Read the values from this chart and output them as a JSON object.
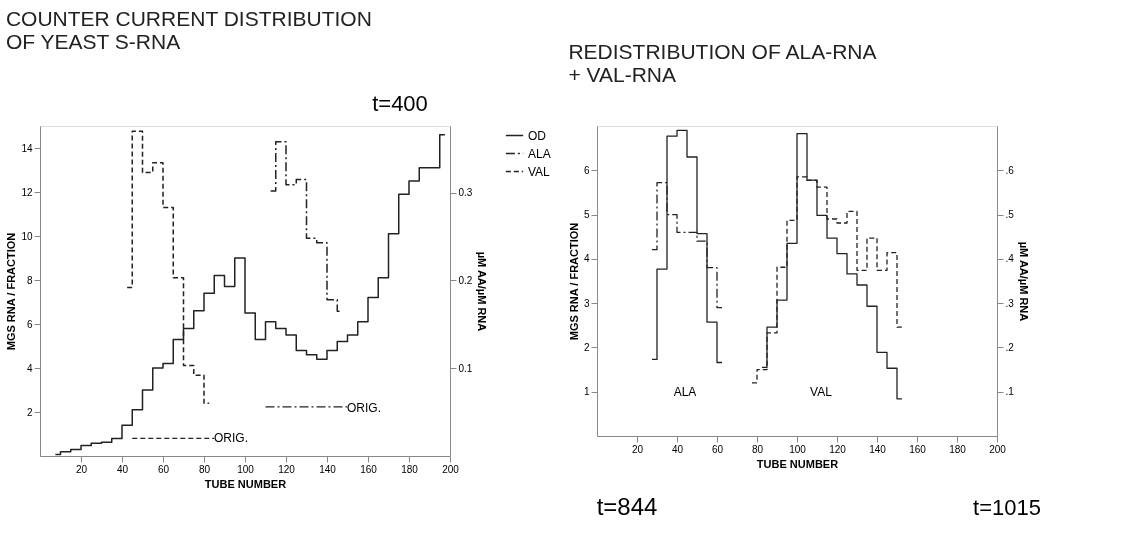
{
  "chart_data": [
    {
      "type": "step",
      "title": "COUNTER CURRENT DISTRIBUTION\nOF YEAST S-RNA",
      "xlabel": "TUBE NUMBER",
      "ylabel": "MGS RNA / FRACTION",
      "y2label": "µM AA/µM RNA",
      "xlim": [
        0,
        200
      ],
      "xticks": [
        20,
        40,
        60,
        80,
        100,
        120,
        140,
        160,
        180,
        200
      ],
      "ylim": [
        0,
        15
      ],
      "yticks": [
        2,
        4,
        6,
        8,
        10,
        12,
        14
      ],
      "y2lim": [
        0,
        0.376
      ],
      "y2ticks": [
        0.1,
        0.2,
        0.3
      ],
      "legend": "top right",
      "series": [
        {
          "name": "OD",
          "color": "#222222",
          "line_style": "solid",
          "x": [
            7.5,
            12.5,
            17.5,
            22.5,
            27.5,
            32.5,
            37.5,
            42.5,
            47.5,
            52.5,
            57.5,
            62.5,
            67.5,
            72.5,
            77.5,
            82.5,
            87.5,
            92.5,
            97.5,
            102.5,
            107.5,
            112.5,
            117.5,
            122.5,
            127.5,
            132.5,
            137.5,
            142.5,
            147.5,
            152.5,
            157.5,
            162.5,
            167.5,
            172.5,
            177.5,
            182.5,
            187.5,
            192.5,
            197.5
          ],
          "values": [
            0.07,
            0.19,
            0.29,
            0.48,
            0.58,
            0.62,
            0.8,
            1.4,
            2.1,
            3.0,
            4.0,
            4.2,
            5.3,
            5.8,
            6.6,
            7.4,
            8.2,
            7.7,
            9.0,
            6.5,
            5.3,
            6.1,
            5.8,
            5.5,
            4.8,
            4.6,
            4.4,
            4.8,
            5.2,
            5.5,
            6.1,
            7.2,
            8.1,
            10.1,
            11.9,
            12.5,
            13.1,
            13.1,
            14.6
          ]
        },
        {
          "name": "ALA",
          "color": "#222222",
          "line_style": "dashdot",
          "axis": "y2",
          "x": [
            112.5,
            117.5,
            122.5,
            127.5,
            132.5,
            137.5,
            142.5,
            147.5
          ],
          "values": [
            0.302,
            0.358,
            0.309,
            0.315,
            0.248,
            0.243,
            0.178,
            0.165
          ]
        },
        {
          "name": "VAL",
          "color": "#222222",
          "line_style": "dashed",
          "axis": "y2",
          "x": [
            42.5,
            47.5,
            52.5,
            57.5,
            62.5,
            67.5,
            72.5,
            77.5,
            82.5
          ],
          "values": [
            0.192,
            0.37,
            0.323,
            0.334,
            0.283,
            0.203,
            0.103,
            0.092,
            0.06
          ]
        },
        {
          "type": "line",
          "color": "#222222",
          "line_style": "dashed",
          "axis": "y2",
          "x": [
            45,
            85
          ],
          "values": [
            0.02,
            0.02
          ]
        },
        {
          "type": "line",
          "color": "#222222",
          "line_style": "dashdot",
          "axis": "y2",
          "x": [
            110,
            150
          ],
          "values": [
            0.056,
            0.056
          ]
        }
      ],
      "annotations": [
        "t=400",
        "ORIG.",
        "ORIG."
      ]
    },
    {
      "type": "step",
      "title": "REDISTRIBUTION OF ALA-RNA\n+ VAL-RNA",
      "xlabel": "TUBE NUMBER",
      "ylabel": "MGS RNA / FRACTION",
      "y2label": "µM AA/µM RNA",
      "xlim": [
        0,
        200
      ],
      "xticks": [
        20,
        40,
        60,
        80,
        100,
        120,
        140,
        160,
        180,
        200
      ],
      "ylim": [
        0,
        7
      ],
      "yticks": [
        1,
        2,
        3,
        4,
        5,
        6
      ],
      "y2lim": [
        0,
        0.7
      ],
      "y2ticks": [
        {
          "value": 0.1,
          "label": ".1"
        },
        {
          "value": 0.2,
          "label": ".2"
        },
        {
          "value": 0.3,
          "label": ".3"
        },
        {
          "value": 0.4,
          "label": ".4"
        },
        {
          "value": 0.5,
          "label": ".5"
        },
        {
          "value": 0.6,
          "label": ".6"
        }
      ],
      "series": [
        {
          "color": "#222222",
          "line_style": "solid",
          "x": [
            27.5,
            32.5,
            37.5,
            42.5,
            47.5,
            52.5,
            57.5,
            62.5,
            72.5,
            82.5,
            87.5,
            92.5,
            97.5,
            102.5,
            107.5,
            112.5,
            117.5,
            122.5,
            127.5,
            132.5,
            137.5,
            142.5,
            147.5,
            152.5
          ],
          "values": [
            1.73,
            3.77,
            6.77,
            6.9,
            6.3,
            4.57,
            2.57,
            1.66,
            null,
            1.55,
            2.46,
            3.07,
            4.35,
            6.83,
            5.78,
            4.98,
            4.47,
            4.12,
            3.66,
            3.41,
            2.93,
            1.89,
            1.53,
            0.84
          ]
        },
        {
          "color": "#222222",
          "line_style": "dashdot",
          "axis": "y2",
          "x": [
            27.5,
            32.5,
            37.5,
            42.5,
            47.5,
            52.5,
            57.5,
            62.5
          ],
          "values": [
            0.421,
            0.572,
            0.5,
            0.46,
            0.46,
            0.44,
            0.38,
            0.29
          ]
        },
        {
          "color": "#222222",
          "line_style": "dashed",
          "axis": "y2",
          "x": [
            77.5,
            82.5,
            87.5,
            92.5,
            97.5,
            102.5,
            107.5,
            112.5,
            117.5,
            122.5,
            127.5,
            132.5,
            137.5,
            142.5,
            147.5,
            152.5
          ],
          "values": [
            0.12,
            0.15,
            0.233,
            0.381,
            0.487,
            0.585,
            0.577,
            0.562,
            0.49,
            0.481,
            0.507,
            0.374,
            0.447,
            0.374,
            0.414,
            0.246
          ]
        }
      ],
      "annotations": [
        "ALA",
        "VAL",
        "t=844",
        "t=1015"
      ]
    }
  ]
}
